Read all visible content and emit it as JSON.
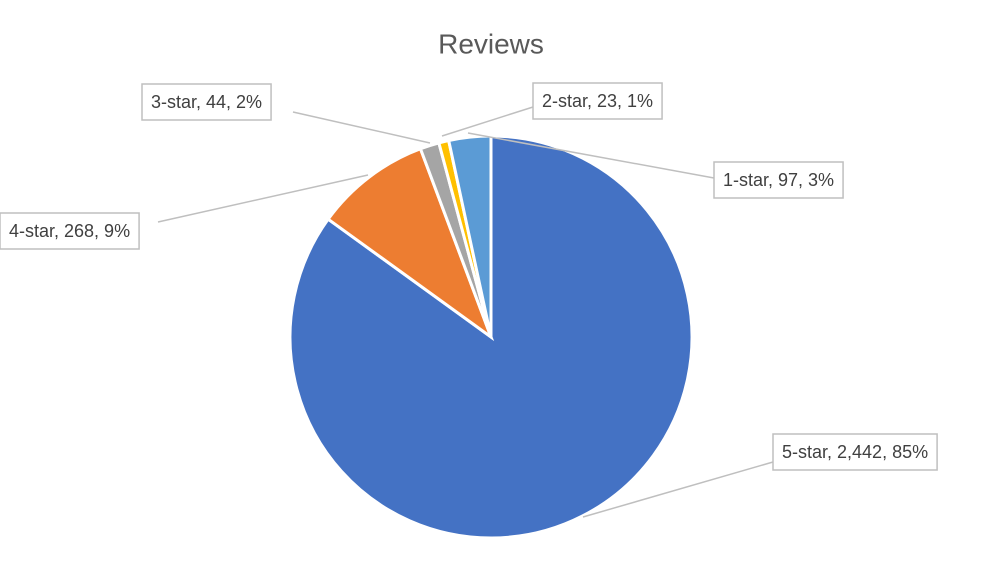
{
  "chart_data": {
    "type": "pie",
    "title": "Reviews",
    "values": [
      2442,
      268,
      44,
      23,
      97
    ],
    "value_labels": [
      "5-star, 2,442, 85%",
      "4-star, 268, 9%",
      "3-star, 44, 2%",
      "2-star, 23, 1%",
      "1-star, 97, 3%"
    ],
    "colors": [
      "#4472c4",
      "#ed7d31",
      "#a5a5a5",
      "#ffc000",
      "#5b9bd5"
    ]
  }
}
